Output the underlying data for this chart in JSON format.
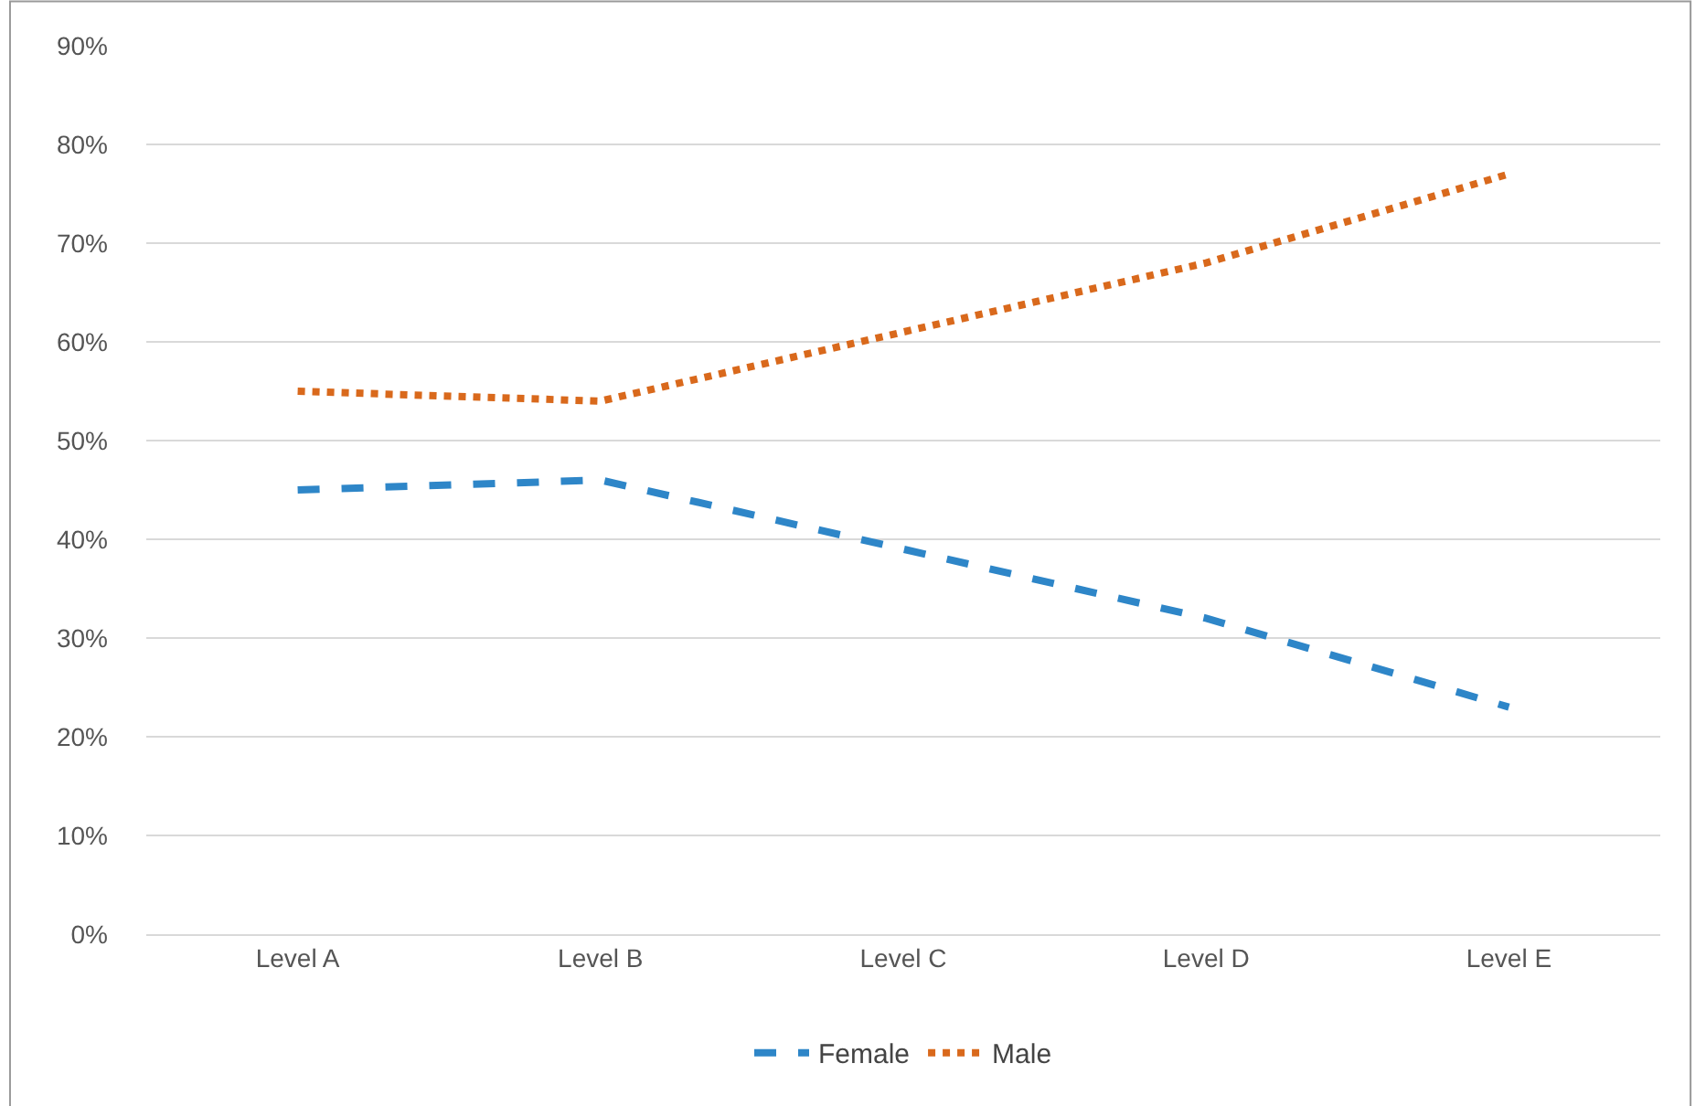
{
  "chart_data": {
    "type": "line",
    "categories": [
      "Level A",
      "Level B",
      "Level C",
      "Level D",
      "Level E"
    ],
    "series": [
      {
        "name": "Female",
        "color": "#2e86c8",
        "values": [
          45,
          46,
          39,
          32,
          23
        ],
        "line_style": "dashed"
      },
      {
        "name": "Male",
        "color": "#d9691c",
        "values": [
          55,
          54,
          61,
          68,
          77
        ],
        "line_style": "dotted"
      }
    ],
    "ylim": [
      0,
      90
    ],
    "yticks": [
      {
        "value": 0,
        "label": "0%"
      },
      {
        "value": 10,
        "label": "10%"
      },
      {
        "value": 20,
        "label": "20%"
      },
      {
        "value": 30,
        "label": "30%"
      },
      {
        "value": 40,
        "label": "40%"
      },
      {
        "value": 50,
        "label": "50%"
      },
      {
        "value": 60,
        "label": "60%"
      },
      {
        "value": 70,
        "label": "70%"
      },
      {
        "value": 80,
        "label": "80%"
      },
      {
        "value": 90,
        "label": "90%"
      }
    ],
    "grid": "y",
    "legend": "bottom",
    "marker": "none"
  }
}
